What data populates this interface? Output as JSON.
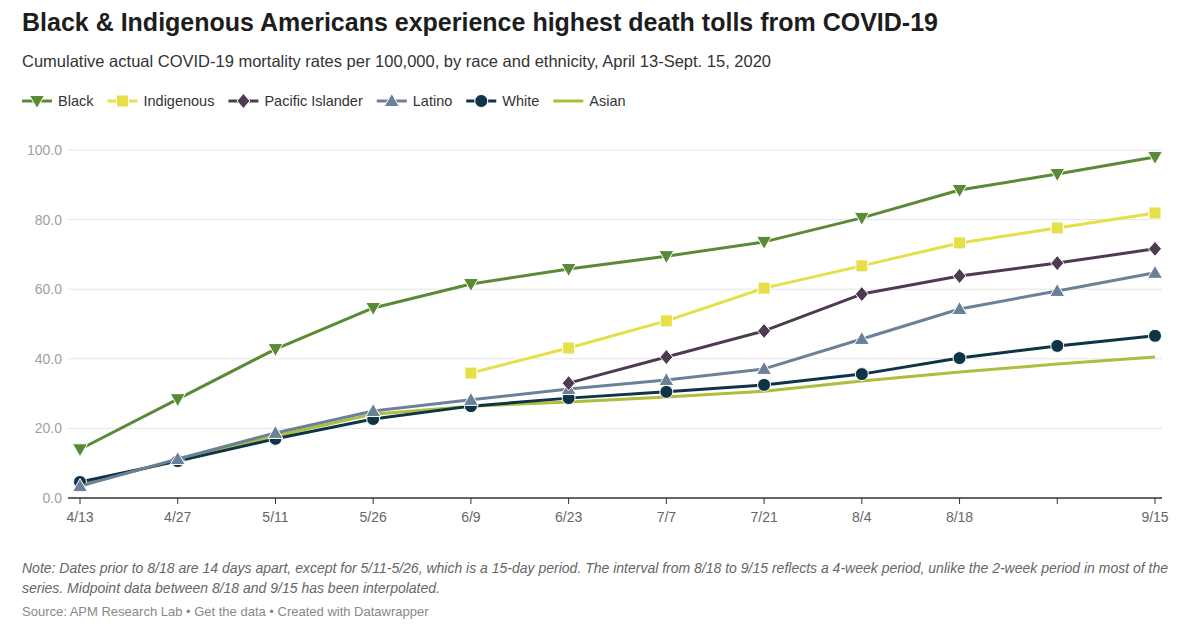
{
  "chart_data": {
    "type": "line",
    "title": "Black & Indigenous Americans experience highest death tolls from COVID-19",
    "subtitle": "Cumulative actual COVID-19 mortality rates per 100,000, by race and ethnicity, April 13-Sept. 15, 2020",
    "note": "Note: Dates prior to 8/18 are 14 days apart, except for 5/11-5/26, which is a 15-day period. The interval from 8/18 to 9/15 reflects a 4-week period, unlike the 2-week period in most of the series. Midpoint data between 8/18 and 9/15 has been interpolated.",
    "source": "Source: APM Research Lab • Get the data • Created with Datawrapper",
    "categories": [
      "4/13",
      "4/27",
      "5/11",
      "5/26",
      "6/9",
      "6/23",
      "7/7",
      "7/21",
      "8/4",
      "8/18",
      null,
      "9/15"
    ],
    "series": [
      {
        "name": "Black",
        "color": "#5a8a35",
        "marker": "triangle-down",
        "values": [
          14,
          28.4,
          42.8,
          54.6,
          61.5,
          65.8,
          69.5,
          73.6,
          80.5,
          88.5,
          93.1,
          98
        ]
      },
      {
        "name": "Indigenous",
        "color": "#e6df48",
        "marker": "square",
        "values": [
          null,
          null,
          null,
          null,
          35.9,
          43.1,
          50.9,
          60.3,
          66.7,
          73.3,
          77.6,
          81.9
        ]
      },
      {
        "name": "Pacific Islander",
        "color": "#4e3b52",
        "marker": "diamond",
        "values": [
          null,
          null,
          null,
          null,
          null,
          33,
          40.5,
          48,
          58.6,
          63.8,
          67.5,
          71.6
        ]
      },
      {
        "name": "Latino",
        "color": "#6b8199",
        "marker": "triangle",
        "values": [
          3.4,
          11.2,
          18.7,
          25,
          28.2,
          31.3,
          33.9,
          37.1,
          45.7,
          54.3,
          59.5,
          64.7
        ]
      },
      {
        "name": "White",
        "color": "#0f3347",
        "marker": "circle",
        "values": [
          4.6,
          10.6,
          17,
          22.7,
          26.4,
          28.7,
          30.5,
          32.5,
          35.6,
          40.2,
          43.7,
          46.6
        ]
      },
      {
        "name": "Asian",
        "color": "#adbd3c",
        "marker": "none",
        "values": [
          3.7,
          10.9,
          17.8,
          24.1,
          26.4,
          27.6,
          29,
          30.7,
          33.6,
          36.2,
          38.5,
          40.5
        ]
      }
    ],
    "ylim": [
      0,
      100
    ],
    "yticks": [
      {
        "value": 0,
        "label": "0.0"
      },
      {
        "value": 20,
        "label": "20.0"
      },
      {
        "value": 40,
        "label": "40.0"
      },
      {
        "value": 60,
        "label": "60.0"
      },
      {
        "value": 80,
        "label": "80.0"
      },
      {
        "value": 100,
        "label": "100.0"
      }
    ],
    "grid": true,
    "legend": "top-left"
  }
}
